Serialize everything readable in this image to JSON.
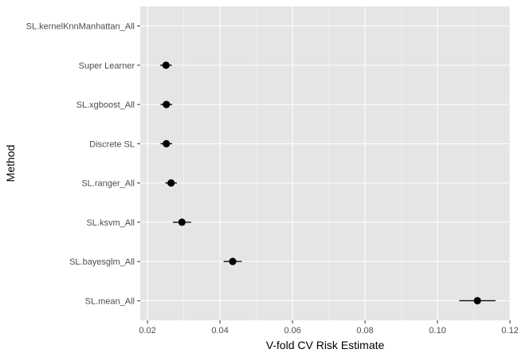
{
  "chart_data": {
    "type": "scatter",
    "title": "",
    "xlabel": "V-fold CV Risk Estimate",
    "ylabel": "Method",
    "xlim": [
      0.018,
      0.12
    ],
    "x_ticks": [
      0.02,
      0.04,
      0.06,
      0.08,
      0.1,
      0.12
    ],
    "x_tick_labels": [
      "0.02",
      "0.04",
      "0.06",
      "0.08",
      "0.10",
      "0.12"
    ],
    "grid": true,
    "categories": [
      "SL.kernelKnnManhattan_All",
      "Super Learner",
      "SL.xgboost_All",
      "Discrete SL",
      "SL.ranger_All",
      "SL.ksvm_All",
      "SL.bayesglm_All",
      "SL.mean_All"
    ],
    "points": [
      {
        "method": "SL.kernelKnnManhattan_All",
        "estimate": null,
        "lower": null,
        "upper": null
      },
      {
        "method": "Super Learner",
        "estimate": 0.0251,
        "lower": 0.0235,
        "upper": 0.0267
      },
      {
        "method": "SL.xgboost_All",
        "estimate": 0.0252,
        "lower": 0.0236,
        "upper": 0.0268
      },
      {
        "method": "Discrete SL",
        "estimate": 0.0252,
        "lower": 0.0236,
        "upper": 0.0268
      },
      {
        "method": "SL.ranger_All",
        "estimate": 0.0265,
        "lower": 0.0249,
        "upper": 0.0281
      },
      {
        "method": "SL.ksvm_All",
        "estimate": 0.0295,
        "lower": 0.027,
        "upper": 0.032
      },
      {
        "method": "SL.bayesglm_All",
        "estimate": 0.0435,
        "lower": 0.041,
        "upper": 0.046
      },
      {
        "method": "SL.mean_All",
        "estimate": 0.111,
        "lower": 0.106,
        "upper": 0.116
      }
    ],
    "colors": {
      "panel_background": "#e5e5e5",
      "grid_major": "#ffffff",
      "point": "#000000",
      "tick_text": "#4d4d4d",
      "tick_mark": "#333333"
    }
  }
}
